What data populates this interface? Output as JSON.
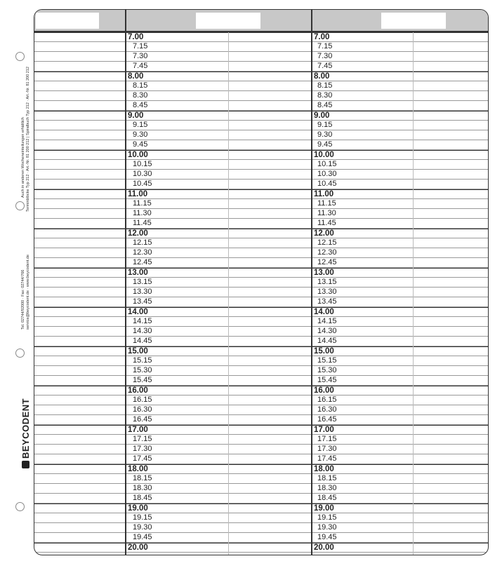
{
  "sidebar": {
    "availability_note": "Auch in anderen Wocheneinteilungen erhältlich",
    "product_numbers": "Terminblöcke Typ 212 · Art.-Nr. 81 200 212 | Spiralbuch Typ 212 · Art.-Nr. 81 200 212",
    "phone_fax": "Tel. 02744/92000 · Fax: 02744/766",
    "web_email": "service@beycodent.de · www.beycodent.de",
    "brand": "BEYCODENT"
  },
  "header": {
    "fill_color": "#c8c8c8"
  },
  "times": [
    "7.00",
    "7.15",
    "7.30",
    "7.45",
    "8.00",
    "8.15",
    "8.30",
    "8.45",
    "9.00",
    "9.15",
    "9.30",
    "9.45",
    "10.00",
    "10.15",
    "10.30",
    "10.45",
    "11.00",
    "11.15",
    "11.30",
    "11.45",
    "12.00",
    "12.15",
    "12.30",
    "12.45",
    "13.00",
    "13.15",
    "13.30",
    "13.45",
    "14.00",
    "14.15",
    "14.30",
    "14.45",
    "15.00",
    "15.15",
    "15.30",
    "15.45",
    "16.00",
    "16.15",
    "16.30",
    "16.45",
    "17.00",
    "17.15",
    "17.30",
    "17.45",
    "18.00",
    "18.15",
    "18.30",
    "18.45",
    "19.00",
    "19.15",
    "19.30",
    "19.45",
    "20.00"
  ]
}
